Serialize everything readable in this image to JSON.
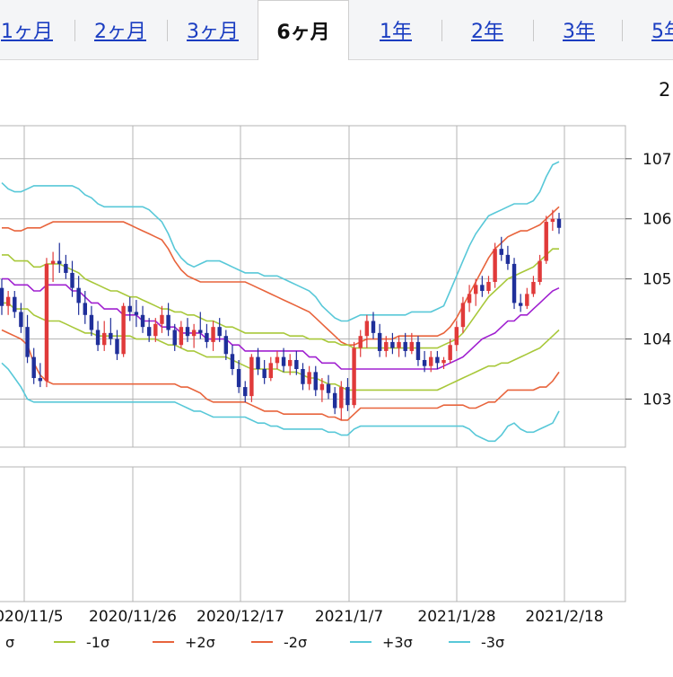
{
  "tabs": [
    {
      "label": "1ヶ月",
      "active": false
    },
    {
      "label": "2ヶ月",
      "active": false
    },
    {
      "label": "3ヶ月",
      "active": false
    },
    {
      "label": "6ヶ月",
      "active": true
    },
    {
      "label": "1年",
      "active": false
    },
    {
      "label": "2年",
      "active": false
    },
    {
      "label": "3年",
      "active": false
    },
    {
      "label": "5年",
      "active": false
    }
  ],
  "corner_text": "2",
  "colors": {
    "up_candle": "#e03a3a",
    "down_candle": "#1f2f9a",
    "sma": "#a020d0",
    "sigma1": "#a8c83a",
    "sigma2": "#e8643c",
    "sigma3": "#58c8d8",
    "grid": "#b4b4b4"
  },
  "chart_data": {
    "type": "candlestick",
    "y_ticks": [
      "107",
      "106",
      "105",
      "104",
      "103"
    ],
    "x_ticks": [
      "2020/11/5",
      "2020/11/26",
      "2020/12/17",
      "2021/1/7",
      "2021/1/28",
      "2021/2/18"
    ],
    "ylim": [
      102.2,
      107.55
    ],
    "grid": true,
    "legend_position": "bottom",
    "legend": [
      {
        "key": "sigma_minus_partial",
        "label": "σ",
        "color": "#a020d0"
      },
      {
        "key": "minus1",
        "label": "-1σ",
        "color": "#a8c83a"
      },
      {
        "key": "plus2",
        "label": "+2σ",
        "color": "#e8643c"
      },
      {
        "key": "minus2",
        "label": "-2σ",
        "color": "#e8643c"
      },
      {
        "key": "plus3",
        "label": "+3σ",
        "color": "#58c8d8"
      },
      {
        "key": "minus3",
        "label": "-3σ",
        "color": "#58c8d8"
      }
    ],
    "ohlc": [
      [
        104.85,
        105.0,
        104.4,
        104.55
      ],
      [
        104.55,
        104.8,
        104.4,
        104.7
      ],
      [
        104.7,
        104.8,
        104.35,
        104.45
      ],
      [
        104.45,
        104.6,
        104.1,
        104.2
      ],
      [
        104.2,
        104.4,
        103.6,
        103.7
      ],
      [
        103.7,
        103.85,
        103.25,
        103.35
      ],
      [
        103.35,
        103.6,
        103.2,
        103.3
      ],
      [
        103.3,
        105.35,
        103.2,
        105.25
      ],
      [
        105.25,
        105.45,
        104.95,
        105.3
      ],
      [
        105.3,
        105.6,
        105.1,
        105.25
      ],
      [
        105.25,
        105.4,
        105.0,
        105.1
      ],
      [
        105.1,
        105.3,
        104.7,
        104.85
      ],
      [
        104.85,
        105.05,
        104.4,
        104.6
      ],
      [
        104.6,
        104.8,
        104.25,
        104.4
      ],
      [
        104.4,
        104.55,
        104.05,
        104.15
      ],
      [
        104.15,
        104.3,
        103.8,
        103.9
      ],
      [
        103.9,
        104.3,
        103.8,
        104.1
      ],
      [
        104.1,
        104.35,
        103.9,
        104.0
      ],
      [
        104.0,
        104.15,
        103.65,
        103.75
      ],
      [
        103.75,
        104.6,
        103.7,
        104.55
      ],
      [
        104.55,
        104.7,
        104.3,
        104.45
      ],
      [
        104.45,
        104.65,
        104.2,
        104.4
      ],
      [
        104.4,
        104.55,
        104.1,
        104.2
      ],
      [
        104.2,
        104.35,
        103.95,
        104.05
      ],
      [
        104.05,
        104.35,
        103.95,
        104.25
      ],
      [
        104.25,
        104.55,
        104.1,
        104.4
      ],
      [
        104.4,
        104.6,
        104.05,
        104.15
      ],
      [
        104.15,
        104.25,
        103.8,
        103.9
      ],
      [
        103.9,
        104.3,
        103.85,
        104.2
      ],
      [
        104.2,
        104.35,
        103.95,
        104.05
      ],
      [
        104.05,
        104.25,
        103.85,
        104.15
      ],
      [
        104.15,
        104.45,
        104.0,
        104.1
      ],
      [
        104.1,
        104.25,
        103.85,
        103.95
      ],
      [
        103.95,
        104.3,
        103.8,
        104.2
      ],
      [
        104.2,
        104.35,
        103.95,
        104.05
      ],
      [
        104.05,
        104.15,
        103.65,
        103.75
      ],
      [
        103.75,
        103.9,
        103.4,
        103.5
      ],
      [
        103.5,
        103.65,
        103.1,
        103.2
      ],
      [
        103.2,
        103.3,
        102.95,
        103.05
      ],
      [
        103.05,
        103.75,
        102.95,
        103.7
      ],
      [
        103.7,
        103.85,
        103.4,
        103.5
      ],
      [
        103.5,
        103.65,
        103.25,
        103.35
      ],
      [
        103.35,
        103.7,
        103.3,
        103.6
      ],
      [
        103.6,
        103.8,
        103.5,
        103.7
      ],
      [
        103.7,
        103.85,
        103.45,
        103.55
      ],
      [
        103.55,
        103.75,
        103.4,
        103.65
      ],
      [
        103.65,
        103.8,
        103.4,
        103.5
      ],
      [
        103.5,
        103.6,
        103.15,
        103.25
      ],
      [
        103.25,
        103.55,
        103.15,
        103.45
      ],
      [
        103.45,
        103.55,
        103.05,
        103.15
      ],
      [
        103.15,
        103.35,
        102.95,
        103.25
      ],
      [
        103.25,
        103.4,
        103.0,
        103.1
      ],
      [
        103.1,
        103.2,
        102.75,
        102.85
      ],
      [
        102.85,
        103.3,
        102.65,
        103.2
      ],
      [
        103.2,
        103.35,
        102.8,
        102.9
      ],
      [
        102.9,
        103.95,
        102.85,
        103.85
      ],
      [
        103.85,
        104.15,
        103.7,
        104.05
      ],
      [
        104.05,
        104.4,
        103.85,
        104.3
      ],
      [
        104.3,
        104.45,
        104.0,
        104.1
      ],
      [
        104.1,
        104.25,
        103.7,
        103.8
      ],
      [
        103.8,
        104.05,
        103.7,
        103.95
      ],
      [
        103.95,
        104.1,
        103.75,
        103.85
      ],
      [
        103.85,
        104.05,
        103.7,
        103.95
      ],
      [
        103.95,
        104.1,
        103.7,
        103.8
      ],
      [
        103.8,
        104.1,
        103.75,
        103.95
      ],
      [
        103.95,
        104.05,
        103.55,
        103.65
      ],
      [
        103.65,
        103.8,
        103.45,
        103.55
      ],
      [
        103.55,
        103.8,
        103.45,
        103.7
      ],
      [
        103.7,
        103.8,
        103.5,
        103.6
      ],
      [
        103.6,
        103.7,
        103.5,
        103.65
      ],
      [
        103.65,
        104.0,
        103.6,
        103.9
      ],
      [
        103.9,
        104.3,
        103.8,
        104.2
      ],
      [
        104.2,
        104.7,
        104.1,
        104.6
      ],
      [
        104.6,
        104.9,
        104.45,
        104.75
      ],
      [
        104.75,
        105.0,
        104.55,
        104.9
      ],
      [
        104.9,
        105.05,
        104.7,
        104.8
      ],
      [
        104.8,
        105.05,
        104.75,
        104.95
      ],
      [
        104.95,
        105.6,
        104.85,
        105.5
      ],
      [
        105.5,
        105.7,
        105.3,
        105.4
      ],
      [
        105.4,
        105.55,
        105.15,
        105.25
      ],
      [
        105.25,
        105.35,
        104.5,
        104.6
      ],
      [
        104.6,
        104.75,
        104.45,
        104.55
      ],
      [
        104.55,
        104.85,
        104.5,
        104.75
      ],
      [
        104.75,
        105.05,
        104.7,
        104.95
      ],
      [
        104.95,
        105.4,
        104.9,
        105.3
      ],
      [
        105.3,
        106.05,
        105.25,
        105.95
      ],
      [
        105.95,
        106.15,
        105.8,
        106.0
      ],
      [
        106.0,
        106.1,
        105.75,
        105.85
      ]
    ],
    "bands": {
      "sma": [
        105.0,
        105.0,
        104.9,
        104.9,
        104.9,
        104.8,
        104.8,
        104.9,
        104.9,
        104.9,
        104.9,
        104.8,
        104.8,
        104.7,
        104.6,
        104.6,
        104.5,
        104.5,
        104.5,
        104.4,
        104.4,
        104.4,
        104.3,
        104.3,
        104.3,
        104.2,
        104.2,
        104.2,
        104.1,
        104.1,
        104.1,
        104.1,
        104.0,
        104.0,
        104.0,
        104.0,
        103.9,
        103.9,
        103.8,
        103.8,
        103.8,
        103.8,
        103.8,
        103.8,
        103.8,
        103.8,
        103.8,
        103.8,
        103.7,
        103.7,
        103.6,
        103.6,
        103.6,
        103.5,
        103.5,
        103.5,
        103.5,
        103.5,
        103.5,
        103.5,
        103.5,
        103.5,
        103.5,
        103.5,
        103.5,
        103.5,
        103.5,
        103.5,
        103.5,
        103.55,
        103.6,
        103.65,
        103.7,
        103.8,
        103.9,
        104.0,
        104.05,
        104.1,
        104.2,
        104.3,
        104.3,
        104.4,
        104.4,
        104.5,
        104.6,
        104.7,
        104.8,
        104.85
      ],
      "plus1": [
        105.4,
        105.4,
        105.3,
        105.3,
        105.3,
        105.2,
        105.2,
        105.25,
        105.25,
        105.25,
        105.2,
        105.15,
        105.1,
        105.0,
        104.95,
        104.9,
        104.85,
        104.8,
        104.8,
        104.75,
        104.7,
        104.7,
        104.65,
        104.6,
        104.55,
        104.5,
        104.5,
        104.45,
        104.45,
        104.4,
        104.4,
        104.35,
        104.3,
        104.3,
        104.25,
        104.2,
        104.2,
        104.15,
        104.1,
        104.1,
        104.1,
        104.1,
        104.1,
        104.1,
        104.1,
        104.05,
        104.05,
        104.05,
        104.0,
        104.0,
        104.0,
        103.95,
        103.95,
        103.9,
        103.9,
        103.85,
        103.85,
        103.85,
        103.85,
        103.85,
        103.85,
        103.85,
        103.85,
        103.85,
        103.85,
        103.85,
        103.85,
        103.85,
        103.85,
        103.9,
        103.95,
        104.0,
        104.1,
        104.25,
        104.4,
        104.55,
        104.7,
        104.8,
        104.9,
        105.0,
        105.05,
        105.1,
        105.15,
        105.2,
        105.3,
        105.4,
        105.5,
        105.5
      ],
      "minus1": [
        104.6,
        104.6,
        104.5,
        104.5,
        104.5,
        104.4,
        104.35,
        104.3,
        104.3,
        104.3,
        104.25,
        104.2,
        104.15,
        104.1,
        104.1,
        104.05,
        104.05,
        104.05,
        104.05,
        104.05,
        104.05,
        104.0,
        104.0,
        104.0,
        104.0,
        103.95,
        103.9,
        103.9,
        103.85,
        103.8,
        103.8,
        103.75,
        103.7,
        103.7,
        103.7,
        103.7,
        103.65,
        103.6,
        103.55,
        103.5,
        103.5,
        103.5,
        103.5,
        103.5,
        103.45,
        103.45,
        103.45,
        103.4,
        103.35,
        103.35,
        103.3,
        103.25,
        103.25,
        103.2,
        103.15,
        103.15,
        103.15,
        103.15,
        103.15,
        103.15,
        103.15,
        103.15,
        103.15,
        103.15,
        103.15,
        103.15,
        103.15,
        103.15,
        103.15,
        103.2,
        103.25,
        103.3,
        103.35,
        103.4,
        103.45,
        103.5,
        103.55,
        103.55,
        103.6,
        103.6,
        103.65,
        103.7,
        103.75,
        103.8,
        103.85,
        103.95,
        104.05,
        104.15
      ],
      "plus2": [
        105.85,
        105.85,
        105.8,
        105.8,
        105.85,
        105.85,
        105.85,
        105.9,
        105.95,
        105.95,
        105.95,
        105.95,
        105.95,
        105.95,
        105.95,
        105.95,
        105.95,
        105.95,
        105.95,
        105.95,
        105.9,
        105.85,
        105.8,
        105.75,
        105.7,
        105.65,
        105.5,
        105.3,
        105.15,
        105.05,
        105.0,
        104.95,
        104.95,
        104.95,
        104.95,
        104.95,
        104.95,
        104.95,
        104.95,
        104.9,
        104.85,
        104.8,
        104.75,
        104.7,
        104.65,
        104.6,
        104.55,
        104.5,
        104.45,
        104.35,
        104.25,
        104.15,
        104.05,
        103.95,
        103.9,
        103.9,
        103.95,
        104.0,
        104.0,
        104.0,
        104.0,
        104.0,
        104.05,
        104.05,
        104.05,
        104.05,
        104.05,
        104.05,
        104.05,
        104.1,
        104.2,
        104.35,
        104.55,
        104.75,
        104.95,
        105.15,
        105.35,
        105.5,
        105.6,
        105.7,
        105.75,
        105.8,
        105.8,
        105.85,
        105.9,
        106.0,
        106.1,
        106.2
      ],
      "minus2": [
        104.15,
        104.1,
        104.05,
        104.0,
        103.9,
        103.6,
        103.4,
        103.3,
        103.25,
        103.25,
        103.25,
        103.25,
        103.25,
        103.25,
        103.25,
        103.25,
        103.25,
        103.25,
        103.25,
        103.25,
        103.25,
        103.25,
        103.25,
        103.25,
        103.25,
        103.25,
        103.25,
        103.25,
        103.2,
        103.2,
        103.15,
        103.1,
        103.0,
        102.95,
        102.95,
        102.95,
        102.95,
        102.95,
        102.95,
        102.9,
        102.85,
        102.8,
        102.8,
        102.8,
        102.75,
        102.75,
        102.75,
        102.75,
        102.75,
        102.75,
        102.75,
        102.7,
        102.7,
        102.65,
        102.65,
        102.75,
        102.85,
        102.85,
        102.85,
        102.85,
        102.85,
        102.85,
        102.85,
        102.85,
        102.85,
        102.85,
        102.85,
        102.85,
        102.85,
        102.9,
        102.9,
        102.9,
        102.9,
        102.85,
        102.85,
        102.9,
        102.95,
        102.95,
        103.05,
        103.15,
        103.15,
        103.15,
        103.15,
        103.15,
        103.2,
        103.2,
        103.3,
        103.45
      ],
      "plus3": [
        106.6,
        106.5,
        106.45,
        106.45,
        106.5,
        106.55,
        106.55,
        106.55,
        106.55,
        106.55,
        106.55,
        106.55,
        106.5,
        106.4,
        106.35,
        106.25,
        106.2,
        106.2,
        106.2,
        106.2,
        106.2,
        106.2,
        106.2,
        106.15,
        106.05,
        105.95,
        105.75,
        105.5,
        105.35,
        105.25,
        105.2,
        105.25,
        105.3,
        105.3,
        105.3,
        105.25,
        105.2,
        105.15,
        105.1,
        105.1,
        105.1,
        105.05,
        105.05,
        105.05,
        105.0,
        104.95,
        104.9,
        104.85,
        104.8,
        104.7,
        104.55,
        104.45,
        104.35,
        104.3,
        104.3,
        104.35,
        104.4,
        104.4,
        104.4,
        104.4,
        104.4,
        104.4,
        104.4,
        104.4,
        104.45,
        104.45,
        104.45,
        104.45,
        104.5,
        104.55,
        104.8,
        105.05,
        105.3,
        105.55,
        105.75,
        105.9,
        106.05,
        106.1,
        106.15,
        106.2,
        106.25,
        106.25,
        106.25,
        106.3,
        106.45,
        106.7,
        106.9,
        106.95
      ],
      "minus3": [
        103.6,
        103.5,
        103.35,
        103.2,
        103.0,
        102.95,
        102.95,
        102.95,
        102.95,
        102.95,
        102.95,
        102.95,
        102.95,
        102.95,
        102.95,
        102.95,
        102.95,
        102.95,
        102.95,
        102.95,
        102.95,
        102.95,
        102.95,
        102.95,
        102.95,
        102.95,
        102.95,
        102.95,
        102.9,
        102.85,
        102.8,
        102.8,
        102.75,
        102.7,
        102.7,
        102.7,
        102.7,
        102.7,
        102.7,
        102.65,
        102.6,
        102.6,
        102.55,
        102.55,
        102.5,
        102.5,
        102.5,
        102.5,
        102.5,
        102.5,
        102.5,
        102.45,
        102.45,
        102.4,
        102.4,
        102.5,
        102.55,
        102.55,
        102.55,
        102.55,
        102.55,
        102.55,
        102.55,
        102.55,
        102.55,
        102.55,
        102.55,
        102.55,
        102.55,
        102.55,
        102.55,
        102.55,
        102.55,
        102.5,
        102.4,
        102.35,
        102.3,
        102.3,
        102.4,
        102.55,
        102.6,
        102.5,
        102.45,
        102.45,
        102.5,
        102.55,
        102.6,
        102.8
      ]
    }
  }
}
